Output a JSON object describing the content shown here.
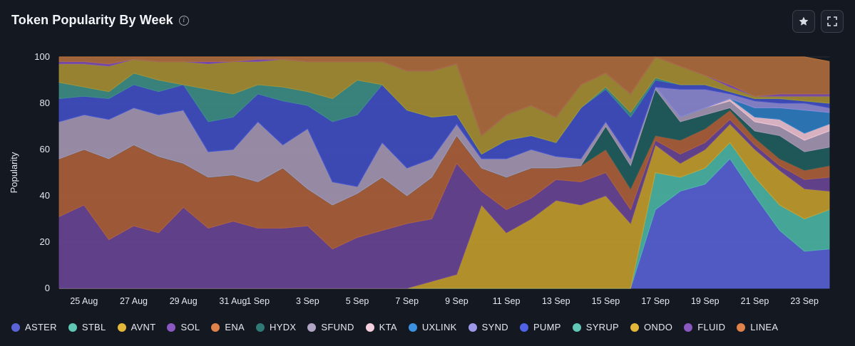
{
  "header": {
    "title": "Token Popularity By Week",
    "info_icon": "info-icon"
  },
  "toolbar": {
    "favorite_icon": "star-icon",
    "expand_icon": "expand-icon"
  },
  "chart_data": {
    "type": "area",
    "stacked": true,
    "title": "Token Popularity By Week",
    "ylabel": "Popularity",
    "xlabel": "",
    "ylim": [
      0,
      100
    ],
    "yticks": [
      0,
      20,
      40,
      60,
      80,
      100
    ],
    "grid": true,
    "legend_position": "bottom",
    "x": [
      "24 Aug",
      "25 Aug",
      "26 Aug",
      "27 Aug",
      "28 Aug",
      "29 Aug",
      "30 Aug",
      "31 Aug",
      "1 Sep",
      "2 Sep",
      "3 Sep",
      "4 Sep",
      "5 Sep",
      "6 Sep",
      "7 Sep",
      "8 Sep",
      "9 Sep",
      "10 Sep",
      "11 Sep",
      "12 Sep",
      "13 Sep",
      "14 Sep",
      "15 Sep",
      "16 Sep",
      "17 Sep",
      "18 Sep",
      "19 Sep",
      "20 Sep",
      "21 Sep",
      "22 Sep",
      "23 Sep",
      "24 Sep"
    ],
    "xtick_labels": [
      "25 Aug",
      "27 Aug",
      "29 Aug",
      "31 Aug",
      "1 Sep",
      "3 Sep",
      "5 Sep",
      "7 Sep",
      "9 Sep",
      "11 Sep",
      "13 Sep",
      "15 Sep",
      "17 Sep",
      "19 Sep",
      "21 Sep",
      "23 Sep"
    ],
    "series": [
      {
        "name": "ASTER",
        "color": "#5a63d8",
        "values": [
          0,
          0,
          0,
          0,
          0,
          0,
          0,
          0,
          0,
          0,
          0,
          0,
          0,
          0,
          0,
          0,
          0,
          0,
          0,
          0,
          0,
          0,
          0,
          0,
          34,
          42,
          45,
          56,
          40,
          25,
          16,
          17
        ]
      },
      {
        "name": "STBL",
        "color": "#4cb8a6",
        "values": [
          0,
          0,
          0,
          0,
          0,
          0,
          0,
          0,
          0,
          0,
          0,
          0,
          0,
          0,
          0,
          0,
          0,
          0,
          0,
          0,
          0,
          0,
          0,
          0,
          16,
          6,
          7,
          7,
          8,
          11,
          14,
          17
        ]
      },
      {
        "name": "AVNT",
        "color": "#c7a12e",
        "values": [
          0,
          0,
          0,
          0,
          0,
          0,
          0,
          0,
          0,
          0,
          0,
          0,
          0,
          0,
          0,
          3,
          6,
          36,
          24,
          30,
          38,
          36,
          40,
          28,
          12,
          6,
          8,
          8,
          12,
          15,
          13,
          8
        ]
      },
      {
        "name": "SOL",
        "color": "#6a4697",
        "values": [
          31,
          36,
          21,
          27,
          24,
          35,
          26,
          29,
          26,
          26,
          27,
          17,
          22,
          25,
          28,
          27,
          48,
          6,
          10,
          9,
          9,
          10,
          10,
          6,
          2,
          4,
          3,
          2,
          2,
          2,
          4,
          6
        ]
      },
      {
        "name": "ENA",
        "color": "#b0623a",
        "values": [
          25,
          24,
          35,
          35,
          33,
          19,
          22,
          20,
          20,
          26,
          16,
          19,
          19,
          23,
          12,
          18,
          12,
          10,
          14,
          13,
          5,
          7,
          10,
          9,
          2,
          6,
          6,
          4,
          3,
          3,
          4,
          5
        ]
      },
      {
        "name": "HYDX",
        "color": "#215e5e",
        "values": [
          0,
          0,
          0,
          0,
          0,
          0,
          0,
          0,
          0,
          0,
          0,
          0,
          0,
          0,
          0,
          0,
          0,
          0,
          0,
          0,
          0,
          0,
          10,
          10,
          20,
          8,
          6,
          1,
          3,
          10,
          8,
          8
        ]
      },
      {
        "name": "SFUND",
        "color": "#a999b6",
        "values": [
          16,
          15,
          17,
          16,
          18,
          23,
          11,
          11,
          26,
          10,
          26,
          10,
          3,
          15,
          12,
          8,
          5,
          4,
          8,
          8,
          5,
          3,
          2,
          3,
          1,
          2,
          3,
          3,
          4,
          4,
          5,
          7
        ]
      },
      {
        "name": "KTA",
        "color": "#f2c6d6",
        "values": [
          0,
          0,
          0,
          0,
          0,
          0,
          0,
          0,
          0,
          0,
          0,
          0,
          0,
          0,
          0,
          0,
          0,
          0,
          0,
          0,
          0,
          0,
          0,
          0,
          0,
          0,
          0,
          1,
          2,
          3,
          3,
          3
        ]
      },
      {
        "name": "UXLINK",
        "color": "#2f7fc4",
        "values": [
          0,
          0,
          0,
          0,
          0,
          0,
          0,
          0,
          0,
          0,
          0,
          0,
          0,
          0,
          0,
          0,
          0,
          0,
          0,
          0,
          0,
          0,
          0,
          0,
          0,
          0,
          0,
          0,
          4,
          5,
          10,
          5
        ]
      },
      {
        "name": "SYND",
        "color": "#8f8ad6",
        "values": [
          0,
          0,
          0,
          0,
          0,
          0,
          0,
          0,
          0,
          0,
          0,
          0,
          0,
          0,
          0,
          0,
          0,
          0,
          0,
          0,
          0,
          0,
          0,
          0,
          0,
          12,
          8,
          2,
          3,
          2,
          3,
          2
        ]
      },
      {
        "name": "PUMP",
        "color": "#4250c6",
        "values": [
          10,
          8,
          9,
          10,
          10,
          11,
          13,
          14,
          12,
          19,
          10,
          26,
          31,
          25,
          25,
          18,
          4,
          2,
          8,
          6,
          6,
          22,
          14,
          18,
          3,
          2,
          2,
          1,
          1,
          2,
          1,
          2
        ]
      },
      {
        "name": "SYRUP",
        "color": "#3f8f88",
        "values": [
          7,
          4,
          3,
          5,
          5,
          0,
          14,
          10,
          4,
          6,
          6,
          10,
          15,
          0,
          0,
          0,
          0,
          0,
          0,
          0,
          0,
          0,
          1,
          2,
          1,
          0,
          0,
          0,
          0,
          0,
          0,
          0
        ]
      },
      {
        "name": "ONDO",
        "color": "#a89132",
        "values": [
          8,
          10,
          11,
          6,
          8,
          10,
          11,
          14,
          10,
          12,
          13,
          16,
          8,
          10,
          17,
          20,
          22,
          8,
          11,
          13,
          11,
          10,
          6,
          8,
          9,
          8,
          4,
          2,
          1,
          1,
          2,
          3
        ]
      },
      {
        "name": "FLUID",
        "color": "#7d4fb4",
        "values": [
          1,
          1,
          1,
          0,
          0,
          0,
          1,
          0,
          1,
          0,
          0,
          0,
          0,
          0,
          0,
          0,
          0,
          0,
          0,
          0,
          0,
          0,
          0,
          0,
          0,
          0,
          0,
          1,
          0,
          1,
          1,
          1
        ]
      },
      {
        "name": "LINEA",
        "color": "#b36e3c",
        "values": [
          2,
          2,
          3,
          1,
          2,
          2,
          2,
          2,
          1,
          1,
          2,
          2,
          2,
          2,
          6,
          6,
          3,
          34,
          25,
          21,
          26,
          12,
          7,
          16,
          0,
          4,
          8,
          12,
          17,
          16,
          16,
          14
        ]
      }
    ]
  },
  "legend": [
    {
      "name": "ASTER",
      "color": "#5a63d8"
    },
    {
      "name": "STBL",
      "color": "#5fc8b6"
    },
    {
      "name": "AVNT",
      "color": "#e3b83a"
    },
    {
      "name": "SOL",
      "color": "#8a58c0"
    },
    {
      "name": "ENA",
      "color": "#e0824a"
    },
    {
      "name": "HYDX",
      "color": "#2f7a74"
    },
    {
      "name": "SFUND",
      "color": "#b0a6c4"
    },
    {
      "name": "KTA",
      "color": "#f5d0de"
    },
    {
      "name": "UXLINK",
      "color": "#3a92e0"
    },
    {
      "name": "SYND",
      "color": "#9d98ea"
    },
    {
      "name": "PUMP",
      "color": "#5063e6"
    },
    {
      "name": "SYRUP",
      "color": "#5fc8b6"
    },
    {
      "name": "ONDO",
      "color": "#e3b83a"
    },
    {
      "name": "FLUID",
      "color": "#8a58c0"
    },
    {
      "name": "LINEA",
      "color": "#e0824a"
    }
  ]
}
